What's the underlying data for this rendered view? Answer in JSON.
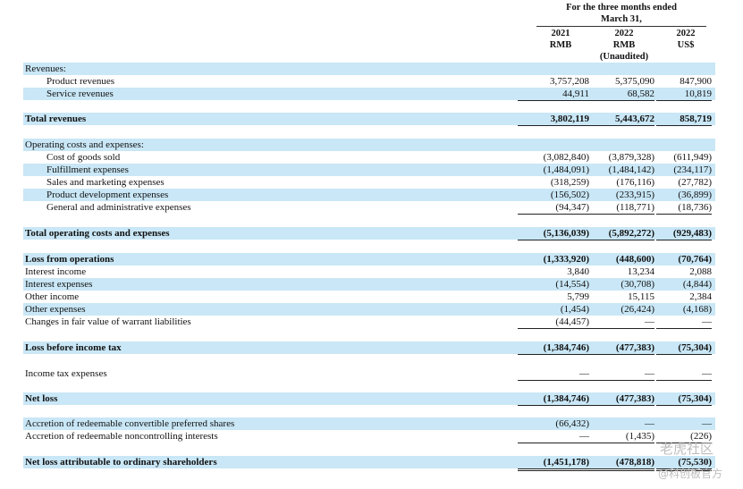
{
  "header": {
    "period": "For the three months ended",
    "date": "March 31,",
    "cols": [
      {
        "year": "2021",
        "cur": "RMB",
        "note": ""
      },
      {
        "year": "2022",
        "cur": "RMB",
        "note": "(Unaudited)"
      },
      {
        "year": "2022",
        "cur": "US$",
        "note": ""
      }
    ]
  },
  "rows": [
    {
      "name": "revenues-heading",
      "label": "Revenues:",
      "indent": false,
      "bold": false,
      "vals": [
        "",
        "",
        ""
      ],
      "ul": "none"
    },
    {
      "name": "product-revenues",
      "label": "Product revenues",
      "indent": true,
      "bold": false,
      "vals": [
        "3,757,208",
        "5,375,090",
        "847,900"
      ],
      "ul": "none"
    },
    {
      "name": "service-revenues",
      "label": "Service revenues",
      "indent": true,
      "bold": false,
      "vals": [
        "44,911",
        "68,582",
        "10,819"
      ],
      "ul": "single"
    },
    {
      "name": "total-revenues",
      "label": "Total revenues",
      "indent": false,
      "bold": true,
      "vals": [
        "3,802,119",
        "5,443,672",
        "858,719"
      ],
      "ul": "single"
    },
    {
      "name": "operating-costs-heading",
      "label": "Operating costs and expenses:",
      "indent": false,
      "bold": false,
      "vals": [
        "",
        "",
        ""
      ],
      "ul": "none"
    },
    {
      "name": "cost-of-goods-sold",
      "label": "Cost of goods sold",
      "indent": true,
      "bold": false,
      "vals": [
        "(3,082,840)",
        "(3,879,328)",
        "(611,949)"
      ],
      "ul": "none"
    },
    {
      "name": "fulfillment-expenses",
      "label": "Fulfillment expenses",
      "indent": true,
      "bold": false,
      "vals": [
        "(1,484,091)",
        "(1,484,142)",
        "(234,117)"
      ],
      "ul": "none"
    },
    {
      "name": "sales-marketing-expenses",
      "label": "Sales and marketing expenses",
      "indent": true,
      "bold": false,
      "vals": [
        "(318,259)",
        "(176,116)",
        "(27,782)"
      ],
      "ul": "none"
    },
    {
      "name": "product-development-expenses",
      "label": "Product development expenses",
      "indent": true,
      "bold": false,
      "vals": [
        "(156,502)",
        "(233,915)",
        "(36,899)"
      ],
      "ul": "none"
    },
    {
      "name": "general-admin-expenses",
      "label": "General and administrative expenses",
      "indent": true,
      "bold": false,
      "vals": [
        "(94,347)",
        "(118,771)",
        "(18,736)"
      ],
      "ul": "single"
    },
    {
      "name": "total-operating-costs",
      "label": "Total operating costs and expenses",
      "indent": false,
      "bold": true,
      "vals": [
        "(5,136,039)",
        "(5,892,272)",
        "(929,483)"
      ],
      "ul": "single"
    },
    {
      "name": "loss-from-operations",
      "label": "Loss from operations",
      "indent": false,
      "bold": true,
      "vals": [
        "(1,333,920)",
        "(448,600)",
        "(70,764)"
      ],
      "ul": "none"
    },
    {
      "name": "interest-income",
      "label": "Interest income",
      "indent": false,
      "bold": false,
      "vals": [
        "3,840",
        "13,234",
        "2,088"
      ],
      "ul": "none"
    },
    {
      "name": "interest-expenses",
      "label": "Interest expenses",
      "indent": false,
      "bold": false,
      "vals": [
        "(14,554)",
        "(30,708)",
        "(4,844)"
      ],
      "ul": "none"
    },
    {
      "name": "other-income",
      "label": "Other income",
      "indent": false,
      "bold": false,
      "vals": [
        "5,799",
        "15,115",
        "2,384"
      ],
      "ul": "none"
    },
    {
      "name": "other-expenses",
      "label": "Other expenses",
      "indent": false,
      "bold": false,
      "vals": [
        "(1,454)",
        "(26,424)",
        "(4,168)"
      ],
      "ul": "none"
    },
    {
      "name": "warrant-fair-value-changes",
      "label": "Changes in fair value of warrant liabilities",
      "indent": false,
      "bold": false,
      "vals": [
        "(44,457)",
        "—",
        "—"
      ],
      "ul": "single"
    },
    {
      "name": "loss-before-income-tax",
      "label": "Loss before income tax",
      "indent": false,
      "bold": true,
      "vals": [
        "(1,384,746)",
        "(477,383)",
        "(75,304)"
      ],
      "ul": "single"
    },
    {
      "name": "income-tax-expenses",
      "label": "Income tax expenses",
      "indent": false,
      "bold": false,
      "vals": [
        "—",
        "—",
        "—"
      ],
      "ul": "single"
    },
    {
      "name": "net-loss",
      "label": "Net loss",
      "indent": false,
      "bold": true,
      "vals": [
        "(1,384,746)",
        "(477,383)",
        "(75,304)"
      ],
      "ul": "single"
    },
    {
      "name": "accretion-preferred-shares",
      "label": "Accretion of redeemable convertible preferred shares",
      "indent": false,
      "bold": false,
      "vals": [
        "(66,432)",
        "—",
        "—"
      ],
      "ul": "none"
    },
    {
      "name": "accretion-noncontrolling-interests",
      "label": "Accretion of redeemable noncontrolling interests",
      "indent": false,
      "bold": false,
      "vals": [
        "—",
        "(1,435)",
        "(226)"
      ],
      "ul": "single"
    },
    {
      "name": "net-loss-ordinary-shareholders",
      "label": "Net loss attributable to ordinary shareholders",
      "indent": false,
      "bold": true,
      "vals": [
        "(1,451,178)",
        "(478,818)",
        "(75,530)"
      ],
      "ul": "double"
    }
  ],
  "watermark": {
    "line1": "老虎社区",
    "line2": "@科创板官方"
  }
}
